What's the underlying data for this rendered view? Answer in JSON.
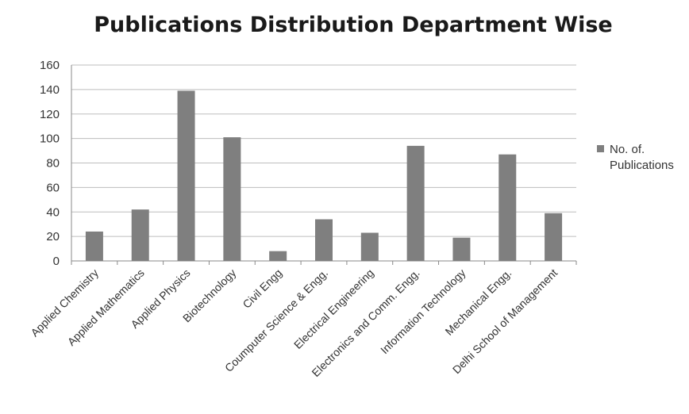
{
  "chart_data": {
    "type": "bar",
    "title": "Publications Distribution Department Wise",
    "categories": [
      "Applied Chemistry",
      "Applied Mathematics",
      "Applied Physics",
      "Biotechnology",
      "Civil Engg",
      "Coumputer Science & Engg.",
      "Electrical Engineering",
      "Electronics and Comm. Engg.",
      "Information Technology",
      "Mechanical Engg.",
      "Delhi School of Management"
    ],
    "series": [
      {
        "name": "No. of. Publications",
        "values": [
          24,
          42,
          139,
          101,
          8,
          34,
          23,
          94,
          19,
          87,
          39
        ],
        "color": "#7f7f7f"
      }
    ],
    "ylim": [
      0,
      160
    ],
    "yticks": [
      "0",
      "20",
      "40",
      "60",
      "80",
      "100",
      "120",
      "140",
      "160"
    ],
    "grid": true,
    "legend": {
      "position": "right",
      "lines": [
        "No. of.",
        "Publications"
      ]
    }
  }
}
